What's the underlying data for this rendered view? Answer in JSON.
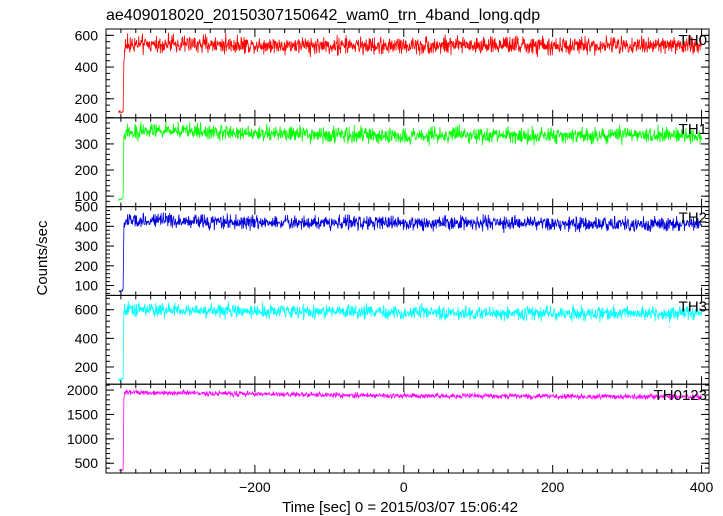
{
  "chart_data": {
    "type": "line",
    "title": "ae409018020_20150307150642_wam0_trn_4band_long.qdp",
    "xlabel": "Time [sec] 0 = 2015/03/07 15:06:42",
    "ylabel": "Counts/sec",
    "xlim": [
      -400,
      410
    ],
    "x_ticks": [
      -200,
      0,
      200,
      400
    ],
    "x_tick_labels": [
      "−200",
      "0",
      "200",
      "400"
    ],
    "panels": [
      {
        "name": "TH0",
        "color": "#ff0000",
        "ylim": [
          80,
          640
        ],
        "y_ticks": [
          200,
          400,
          600
        ],
        "y_tick_labels": [
          "200",
          "400",
          "600"
        ],
        "pre_level": 120,
        "level": 540,
        "noise": 45,
        "x": [
          -383,
          -378,
          -377,
          -376,
          -374,
          -300,
          -200,
          -100,
          0,
          100,
          200,
          300,
          400
        ],
        "y": [
          120,
          115,
          120,
          430,
          540,
          545,
          540,
          535,
          535,
          540,
          530,
          540,
          535
        ]
      },
      {
        "name": "TH1",
        "color": "#00ff00",
        "ylim": [
          60,
          400
        ],
        "y_ticks": [
          100,
          200,
          300,
          400
        ],
        "y_tick_labels": [
          "100",
          "200",
          "300",
          "400"
        ],
        "pre_level": 90,
        "level": 340,
        "noise": 25,
        "x": [
          -383,
          -378,
          -377,
          -376,
          -374,
          -300,
          -200,
          -100,
          0,
          100,
          200,
          300,
          400
        ],
        "y": [
          85,
          90,
          95,
          320,
          345,
          350,
          340,
          335,
          330,
          335,
          330,
          335,
          330
        ]
      },
      {
        "name": "TH2",
        "color": "#0000dd",
        "ylim": [
          50,
          500
        ],
        "y_ticks": [
          100,
          200,
          300,
          400,
          500
        ],
        "y_tick_labels": [
          "100",
          "200",
          "300",
          "400",
          "500"
        ],
        "pre_level": 75,
        "level": 420,
        "noise": 30,
        "x": [
          -383,
          -378,
          -377,
          -376,
          -374,
          -300,
          -200,
          -100,
          0,
          100,
          200,
          300,
          400
        ],
        "y": [
          70,
          75,
          80,
          380,
          430,
          425,
          420,
          420,
          415,
          420,
          410,
          410,
          410
        ]
      },
      {
        "name": "TH3",
        "color": "#00ffff",
        "ylim": [
          80,
          700
        ],
        "y_ticks": [
          200,
          400,
          600
        ],
        "y_tick_labels": [
          "200",
          "400",
          "600"
        ],
        "pre_level": 115,
        "level": 590,
        "noise": 40,
        "x": [
          -383,
          -378,
          -377,
          -376,
          -374,
          -300,
          -200,
          -100,
          0,
          100,
          200,
          300,
          400
        ],
        "y": [
          110,
          115,
          120,
          560,
          600,
          595,
          590,
          585,
          580,
          575,
          575,
          575,
          575
        ]
      },
      {
        "name": "TH0123",
        "color": "#ff00ff",
        "ylim": [
          300,
          2120
        ],
        "y_ticks": [
          500,
          1000,
          1500,
          2000
        ],
        "y_tick_labels": [
          "500",
          "1000",
          "1500",
          "2000"
        ],
        "pre_level": 360,
        "level": 1890,
        "noise": 45,
        "x": [
          -383,
          -378,
          -377,
          -376,
          -374,
          -300,
          -200,
          -100,
          0,
          100,
          200,
          300,
          400
        ],
        "y": [
          355,
          360,
          370,
          1850,
          1950,
          1940,
          1920,
          1900,
          1880,
          1880,
          1870,
          1865,
          1860
        ]
      }
    ]
  }
}
